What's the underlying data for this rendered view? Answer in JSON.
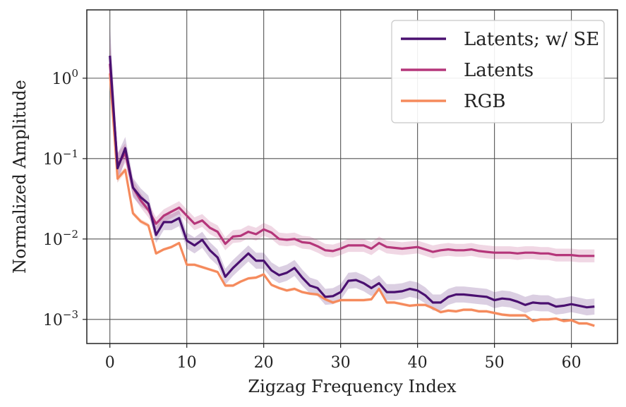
{
  "chart_data": {
    "type": "line",
    "title": "",
    "xlabel": "Zigzag Frequency Index",
    "ylabel": "Normalized Amplitude",
    "yscale": "log",
    "xlim": [
      -3,
      66
    ],
    "ylim_log10": [
      -3.3,
      0.85
    ],
    "xticks": [
      0,
      10,
      20,
      30,
      40,
      50,
      60
    ],
    "xtick_labels": [
      "0",
      "10",
      "20",
      "30",
      "40",
      "50",
      "60"
    ],
    "yticks_exponent": [
      0,
      -1,
      -2,
      -3
    ],
    "ytick_labels": [
      {
        "base": "10",
        "exp": "0"
      },
      {
        "base": "10",
        "exp": "−1"
      },
      {
        "base": "10",
        "exp": "−2"
      },
      {
        "base": "10",
        "exp": "−3"
      }
    ],
    "grid": true,
    "legend_position": "top-right",
    "series": [
      {
        "name": "Latents; w/ SE",
        "color": "#4a1070",
        "log10_values": [
          0.28,
          -1.12,
          -0.87,
          -1.36,
          -1.48,
          -1.56,
          -1.95,
          -1.79,
          -1.79,
          -1.74,
          -2.02,
          -2.08,
          -2.01,
          -2.14,
          -2.23,
          -2.47,
          -2.36,
          -2.27,
          -2.18,
          -2.27,
          -2.27,
          -2.39,
          -2.45,
          -2.42,
          -2.36,
          -2.48,
          -2.58,
          -2.61,
          -2.72,
          -2.71,
          -2.66,
          -2.52,
          -2.51,
          -2.55,
          -2.61,
          -2.55,
          -2.66,
          -2.66,
          -2.65,
          -2.62,
          -2.64,
          -2.7,
          -2.79,
          -2.79,
          -2.72,
          -2.69,
          -2.69,
          -2.7,
          -2.71,
          -2.72,
          -2.76,
          -2.74,
          -2.75,
          -2.78,
          -2.82,
          -2.79,
          -2.8,
          -2.8,
          -2.84,
          -2.83,
          -2.81,
          -2.83,
          -2.85,
          -2.84
        ],
        "band_halfwidth_log10": [
          0.38,
          0.18,
          0.14,
          0.12,
          0.11,
          0.1,
          0.1,
          0.1,
          0.1,
          0.1,
          0.1,
          0.1,
          0.1,
          0.1,
          0.1,
          0.1,
          0.1,
          0.1,
          0.1,
          0.1,
          0.1,
          0.1,
          0.1,
          0.1,
          0.1,
          0.1,
          0.1,
          0.1,
          0.1,
          0.1,
          0.1,
          0.1,
          0.1,
          0.1,
          0.1,
          0.1,
          0.1,
          0.1,
          0.1,
          0.1,
          0.1,
          0.1,
          0.1,
          0.1,
          0.1,
          0.1,
          0.1,
          0.1,
          0.1,
          0.1,
          0.1,
          0.1,
          0.1,
          0.1,
          0.1,
          0.1,
          0.1,
          0.1,
          0.1,
          0.1,
          0.1,
          0.1,
          0.1,
          0.1
        ]
      },
      {
        "name": "Latents",
        "color": "#b5367a",
        "log10_values": [
          0.18,
          -1.08,
          -0.93,
          -1.36,
          -1.52,
          -1.64,
          -1.81,
          -1.71,
          -1.66,
          -1.61,
          -1.71,
          -1.81,
          -1.77,
          -1.86,
          -1.91,
          -2.06,
          -1.97,
          -1.96,
          -1.91,
          -1.94,
          -1.88,
          -1.92,
          -2.0,
          -2.01,
          -2.0,
          -2.04,
          -2.05,
          -2.09,
          -2.14,
          -2.15,
          -2.12,
          -2.08,
          -2.08,
          -2.08,
          -2.12,
          -2.05,
          -2.1,
          -2.11,
          -2.12,
          -2.11,
          -2.1,
          -2.13,
          -2.16,
          -2.14,
          -2.13,
          -2.14,
          -2.14,
          -2.13,
          -2.15,
          -2.16,
          -2.17,
          -2.17,
          -2.17,
          -2.18,
          -2.17,
          -2.17,
          -2.18,
          -2.18,
          -2.2,
          -2.2,
          -2.2,
          -2.21,
          -2.21,
          -2.21
        ],
        "band_halfwidth_log10": [
          0.3,
          0.15,
          0.12,
          0.1,
          0.09,
          0.09,
          0.08,
          0.08,
          0.08,
          0.08,
          0.08,
          0.08,
          0.08,
          0.08,
          0.08,
          0.08,
          0.08,
          0.08,
          0.08,
          0.08,
          0.08,
          0.08,
          0.08,
          0.08,
          0.08,
          0.08,
          0.08,
          0.08,
          0.08,
          0.08,
          0.08,
          0.08,
          0.08,
          0.08,
          0.08,
          0.08,
          0.08,
          0.08,
          0.08,
          0.08,
          0.08,
          0.08,
          0.08,
          0.08,
          0.08,
          0.08,
          0.08,
          0.08,
          0.08,
          0.08,
          0.08,
          0.08,
          0.08,
          0.08,
          0.08,
          0.08,
          0.08,
          0.08,
          0.08,
          0.08,
          0.08,
          0.08,
          0.08,
          0.08
        ]
      },
      {
        "name": "RGB",
        "color": "#f58a5c",
        "log10_values": [
          0.06,
          -1.25,
          -1.14,
          -1.68,
          -1.78,
          -1.83,
          -2.18,
          -2.13,
          -2.1,
          -2.05,
          -2.32,
          -2.32,
          -2.35,
          -2.38,
          -2.41,
          -2.58,
          -2.58,
          -2.53,
          -2.49,
          -2.48,
          -2.44,
          -2.57,
          -2.61,
          -2.64,
          -2.62,
          -2.66,
          -2.68,
          -2.69,
          -2.75,
          -2.79,
          -2.76,
          -2.76,
          -2.76,
          -2.76,
          -2.75,
          -2.62,
          -2.79,
          -2.79,
          -2.81,
          -2.83,
          -2.82,
          -2.82,
          -2.86,
          -2.91,
          -2.89,
          -2.9,
          -2.88,
          -2.88,
          -2.9,
          -2.9,
          -2.92,
          -2.94,
          -2.95,
          -2.95,
          -2.95,
          -3.02,
          -3.0,
          -3.0,
          -2.99,
          -3.02,
          -3.01,
          -3.05,
          -3.05,
          -3.08
        ],
        "band_halfwidth_log10": [
          0.2,
          0.05,
          0.04,
          0.03,
          0.03,
          0.03,
          0.02,
          0.02,
          0.02,
          0.02,
          0.02,
          0.02,
          0.02,
          0.02,
          0.02,
          0.02,
          0.02,
          0.02,
          0.02,
          0.02,
          0.02,
          0.02,
          0.02,
          0.02,
          0.02,
          0.02,
          0.02,
          0.02,
          0.02,
          0.02,
          0.02,
          0.02,
          0.02,
          0.02,
          0.02,
          0.02,
          0.02,
          0.02,
          0.02,
          0.02,
          0.02,
          0.02,
          0.02,
          0.02,
          0.02,
          0.02,
          0.02,
          0.02,
          0.02,
          0.02,
          0.02,
          0.02,
          0.02,
          0.02,
          0.02,
          0.02,
          0.02,
          0.02,
          0.02,
          0.02,
          0.02,
          0.02,
          0.02,
          0.02
        ]
      }
    ]
  }
}
